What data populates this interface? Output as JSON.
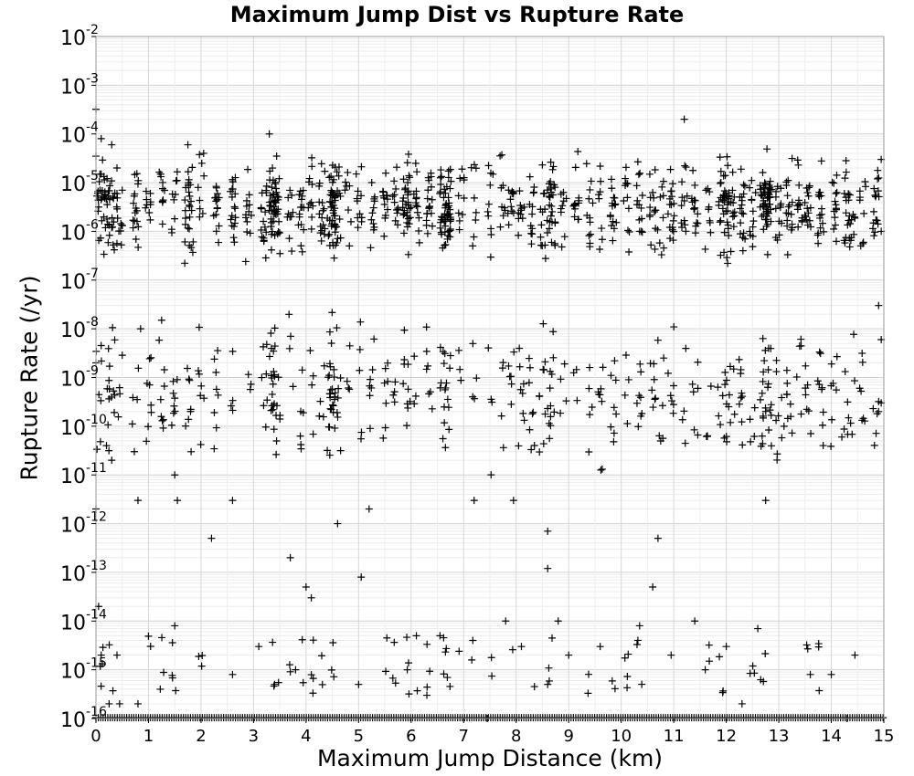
{
  "chart_data": {
    "type": "scatter",
    "title": "Maximum Jump Dist vs Rupture Rate",
    "xlabel": "Maximum Jump Distance (km)",
    "ylabel": "Rupture Rate (/yr)",
    "xlim": [
      0,
      15
    ],
    "ylim": [
      1e-16,
      0.01
    ],
    "yscale": "log",
    "grid": true,
    "marker": "+",
    "marker_color": "#000000",
    "x_ticks": [
      "0",
      "1",
      "2",
      "3",
      "4",
      "5",
      "6",
      "7",
      "8",
      "9",
      "10",
      "11",
      "12",
      "13",
      "14",
      "15"
    ],
    "y_ticks": [
      {
        "base": "10",
        "exp": "-2"
      },
      {
        "base": "10",
        "exp": "-3"
      },
      {
        "base": "10",
        "exp": "-4"
      },
      {
        "base": "10",
        "exp": "-5"
      },
      {
        "base": "10",
        "exp": "-6"
      },
      {
        "base": "10",
        "exp": "-7"
      },
      {
        "base": "10",
        "exp": "-8"
      },
      {
        "base": "10",
        "exp": "-9"
      },
      {
        "base": "10",
        "exp": "-10"
      },
      {
        "base": "10",
        "exp": "-11"
      },
      {
        "base": "10",
        "exp": "-12"
      },
      {
        "base": "10",
        "exp": "-13"
      },
      {
        "base": "10",
        "exp": "-14"
      },
      {
        "base": "10",
        "exp": "-15"
      },
      {
        "base": "10",
        "exp": "-16"
      }
    ],
    "columns": [
      0.0,
      0.1,
      0.2,
      0.3,
      0.45,
      0.75,
      1.0,
      1.25,
      1.5,
      1.75,
      1.8,
      2.0,
      2.3,
      2.6,
      2.9,
      3.2,
      3.35,
      3.4,
      3.45,
      3.7,
      3.9,
      4.1,
      4.3,
      4.45,
      4.5,
      4.6,
      4.8,
      5.0,
      5.25,
      5.5,
      5.7,
      5.9,
      5.95,
      6.1,
      6.35,
      6.6,
      6.65,
      6.7,
      6.95,
      7.2,
      7.5,
      7.75,
      7.9,
      8.1,
      8.3,
      8.5,
      8.65,
      8.7,
      8.9,
      9.15,
      9.4,
      9.6,
      9.85,
      10.1,
      10.35,
      10.6,
      10.75,
      10.95,
      11.2,
      11.4,
      11.65,
      11.9,
      12.0,
      12.1,
      12.3,
      12.5,
      12.7,
      12.75,
      12.8,
      13.0,
      13.2,
      13.4,
      13.55,
      13.8,
      14.05,
      14.3,
      14.4,
      14.6,
      14.85
    ],
    "dense_columns": [
      3.4,
      4.5,
      6.0,
      6.7,
      8.6,
      12.0,
      12.8
    ],
    "points": [
      [
        0.0,
        3.5e-05
      ],
      [
        0.0,
        0.00032
      ],
      [
        0.1,
        8e-05
      ],
      [
        0.1,
        1.5e-05
      ],
      [
        0.3,
        6e-05
      ],
      [
        0.4,
        2e-05
      ],
      [
        0.5,
        7e-06
      ],
      [
        0.0,
        2e-09
      ],
      [
        0.2,
        4e-11
      ],
      [
        0.3,
        2e-11
      ],
      [
        0.85,
        1e-08
      ],
      [
        1.25,
        1.5e-08
      ],
      [
        0.0,
        2e-12
      ],
      [
        0.8,
        3e-12
      ],
      [
        0.05,
        2e-14
      ],
      [
        0.1,
        2e-15
      ],
      [
        0.4,
        2e-15
      ],
      [
        0.25,
        2e-16
      ],
      [
        0.45,
        2e-16
      ],
      [
        0.8,
        2e-16
      ],
      [
        1.5,
        1e-11
      ],
      [
        1.55,
        3e-12
      ],
      [
        1.5,
        8e-15
      ],
      [
        1.75,
        6e-05
      ],
      [
        2.05,
        4e-05
      ],
      [
        2.2,
        5e-13
      ],
      [
        2.6,
        3e-12
      ],
      [
        2.6,
        8e-16
      ],
      [
        3.1,
        3e-15
      ],
      [
        3.3,
        0.0001
      ],
      [
        3.7,
        2e-13
      ],
      [
        4.0,
        5e-14
      ],
      [
        4.1,
        3e-14
      ],
      [
        3.8,
        1e-15
      ],
      [
        3.4,
        5e-16
      ],
      [
        5.05,
        8e-14
      ],
      [
        5.2,
        2e-12
      ],
      [
        5.0,
        5e-16
      ],
      [
        4.6,
        1e-12
      ],
      [
        6.1,
        5e-15
      ],
      [
        6.55,
        5e-15
      ],
      [
        6.3,
        3e-16
      ],
      [
        7.2,
        3e-12
      ],
      [
        7.45,
        1e-16
      ],
      [
        7.8,
        1e-14
      ],
      [
        7.95,
        3e-12
      ],
      [
        8.1,
        3e-15
      ],
      [
        8.6,
        7e-13
      ],
      [
        8.6,
        1.2e-13
      ],
      [
        8.8,
        1e-14
      ],
      [
        8.6,
        5e-16
      ],
      [
        9.6,
        3e-15
      ],
      [
        9.0,
        2e-15
      ],
      [
        10.35,
        8e-15
      ],
      [
        10.6,
        5e-14
      ],
      [
        10.7,
        5e-13
      ],
      [
        10.95,
        2e-15
      ],
      [
        11.4,
        1e-14
      ],
      [
        11.2,
        0.0002
      ],
      [
        11.6,
        1e-15
      ],
      [
        12.0,
        3e-15
      ],
      [
        12.3,
        2e-16
      ],
      [
        12.6,
        7e-15
      ],
      [
        12.75,
        3e-12
      ],
      [
        13.1,
        1e-10
      ],
      [
        13.6,
        8e-16
      ],
      [
        14.0,
        8e-16
      ],
      [
        14.3,
        1e-16
      ],
      [
        14.45,
        2e-15
      ],
      [
        14.95,
        3e-05
      ],
      [
        14.95,
        1e-06
      ],
      [
        14.9,
        3e-08
      ],
      [
        14.95,
        6e-09
      ],
      [
        14.95,
        3e-10
      ],
      [
        14.9,
        2e-10
      ],
      [
        14.2,
        6e-11
      ]
    ]
  }
}
